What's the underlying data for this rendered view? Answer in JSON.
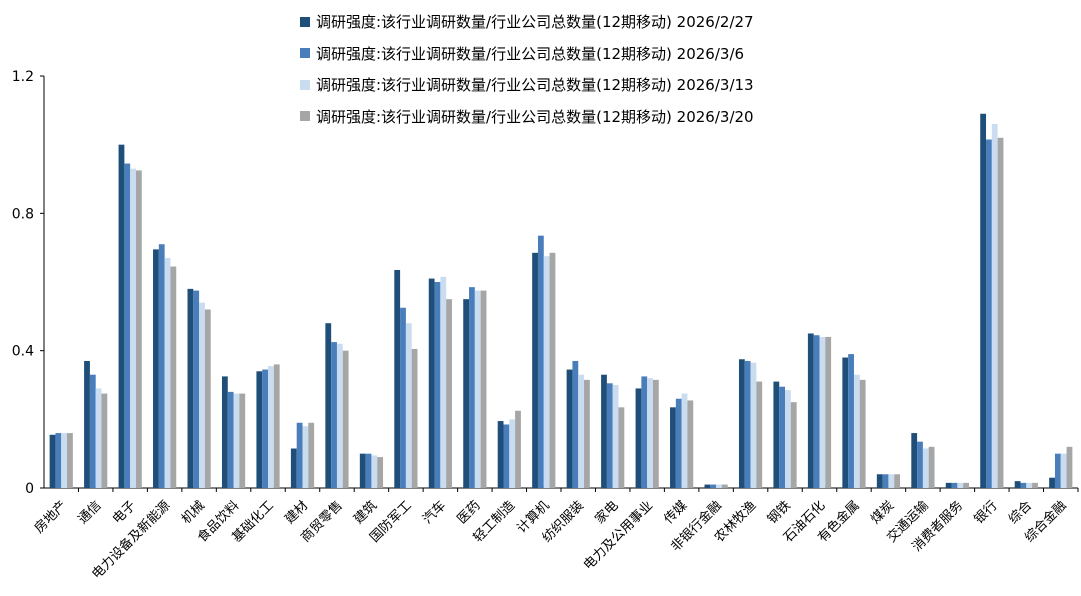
{
  "chart_data": {
    "type": "bar",
    "title": "",
    "xlabel": "",
    "ylabel": "",
    "ylim": [
      0,
      1.2
    ],
    "yticks": [
      "0",
      "0.4",
      "0.8",
      "1.2"
    ],
    "legend_position": "top",
    "categories": [
      "房地产",
      "通信",
      "电子",
      "电力设备及新能源",
      "机械",
      "食品饮料",
      "基础化工",
      "建材",
      "商贸零售",
      "建筑",
      "国防军工",
      "汽车",
      "医药",
      "轻工制造",
      "计算机",
      "纺织服装",
      "家电",
      "电力及公用事业",
      "传媒",
      "非银行金融",
      "农林牧渔",
      "钢铁",
      "石油石化",
      "有色金属",
      "煤炭",
      "交通运输",
      "消费者服务",
      "银行",
      "综合",
      "综合金融"
    ],
    "series": [
      {
        "name": "调研强度:该行业调研数量/行业公司总数量(12期移动) 2026/2/27",
        "color": "#1f4e79",
        "values": [
          0.155,
          0.37,
          1.0,
          0.695,
          0.58,
          0.325,
          0.34,
          0.115,
          0.48,
          0.1,
          0.635,
          0.61,
          0.55,
          0.195,
          0.685,
          0.345,
          0.33,
          0.29,
          0.235,
          0.01,
          0.375,
          0.31,
          0.45,
          0.38,
          0.04,
          0.16,
          0.015,
          1.09,
          0.02,
          0.03
        ]
      },
      {
        "name": "调研强度:该行业调研数量/行业公司总数量(12期移动) 2026/3/6",
        "color": "#4a7ebb",
        "values": [
          0.16,
          0.33,
          0.945,
          0.71,
          0.575,
          0.28,
          0.345,
          0.19,
          0.425,
          0.1,
          0.525,
          0.6,
          0.585,
          0.185,
          0.735,
          0.37,
          0.305,
          0.325,
          0.26,
          0.01,
          0.37,
          0.295,
          0.445,
          0.39,
          0.04,
          0.135,
          0.015,
          1.015,
          0.015,
          0.1
        ]
      },
      {
        "name": "调研强度:该行业调研数量/行业公司总数量(12期移动) 2026/3/13",
        "color": "#c9dcf0",
        "values": [
          0.16,
          0.29,
          0.93,
          0.67,
          0.54,
          0.275,
          0.355,
          0.18,
          0.42,
          0.095,
          0.48,
          0.615,
          0.575,
          0.2,
          0.675,
          0.33,
          0.3,
          0.32,
          0.275,
          0.01,
          0.365,
          0.285,
          0.44,
          0.33,
          0.04,
          0.115,
          0.015,
          1.06,
          0.015,
          0.1
        ]
      },
      {
        "name": "调研强度:该行业调研数量/行业公司总数量(12期移动) 2026/3/20",
        "color": "#a6a6a6",
        "values": [
          0.16,
          0.275,
          0.925,
          0.645,
          0.52,
          0.275,
          0.36,
          0.19,
          0.4,
          0.09,
          0.405,
          0.55,
          0.575,
          0.225,
          0.685,
          0.315,
          0.235,
          0.315,
          0.255,
          0.01,
          0.31,
          0.25,
          0.44,
          0.315,
          0.04,
          0.12,
          0.015,
          1.02,
          0.015,
          0.12
        ]
      }
    ]
  }
}
